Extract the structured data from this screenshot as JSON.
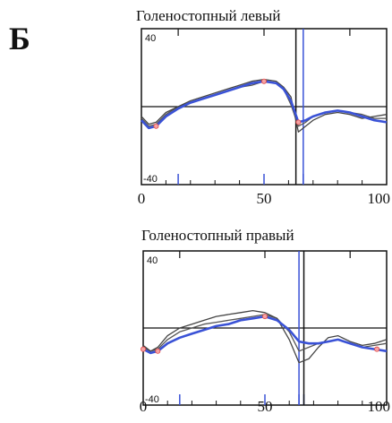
{
  "panel_label": "Б",
  "chart_data": [
    {
      "type": "line",
      "title": "Голеностопный левый",
      "xlim": [
        0,
        100
      ],
      "ylim": [
        -40,
        40
      ],
      "x_ticks": [
        "0",
        "50",
        "100"
      ],
      "y_ticks": [
        "40",
        "-40"
      ],
      "vertical_markers": [
        {
          "x": 63,
          "color": "#111111"
        },
        {
          "x": 66,
          "color": "#3a52d6"
        }
      ],
      "bottom_markers": [
        15,
        50,
        66
      ],
      "series": [
        {
          "color": "#3a52d6",
          "x": [
            0,
            3,
            6,
            10,
            15,
            20,
            25,
            30,
            35,
            40,
            45,
            50,
            55,
            58,
            61,
            64,
            67,
            70,
            75,
            80,
            85,
            90,
            95,
            100
          ],
          "y": [
            -7,
            -11,
            -10,
            -5,
            -1,
            2,
            4,
            6,
            8,
            10,
            12,
            13,
            12,
            9,
            3,
            -8,
            -7,
            -5,
            -3,
            -2,
            -3,
            -5,
            -7,
            -8
          ]
        },
        {
          "color": "#444444",
          "x": [
            0,
            3,
            6,
            10,
            15,
            20,
            25,
            30,
            35,
            40,
            45,
            50,
            55,
            58,
            61,
            64,
            67,
            70,
            75,
            80,
            85,
            90,
            95,
            100
          ],
          "y": [
            -5,
            -9,
            -8,
            -3,
            0,
            3,
            5,
            7,
            9,
            11,
            13,
            14,
            13,
            10,
            5,
            -13,
            -10,
            -7,
            -4,
            -3,
            -4,
            -6,
            -5,
            -4
          ]
        },
        {
          "color": "#555555",
          "x": [
            0,
            3,
            6,
            10,
            15,
            20,
            25,
            30,
            35,
            40,
            45,
            50,
            55,
            58,
            61,
            64,
            67,
            70,
            75,
            80,
            85,
            90,
            95,
            100
          ],
          "y": [
            -6,
            -10,
            -9,
            -4,
            0,
            2,
            4,
            6,
            8,
            10,
            11,
            13,
            12,
            9,
            1,
            -10,
            -8,
            -5,
            -3,
            -2,
            -3,
            -4,
            -6,
            -6
          ]
        }
      ],
      "points": [
        {
          "x": 6,
          "y": -10
        },
        {
          "x": 50,
          "y": 13
        },
        {
          "x": 64,
          "y": -8
        }
      ]
    },
    {
      "type": "line",
      "title": "Голеностопный правый",
      "xlim": [
        0,
        100
      ],
      "ylim": [
        -40,
        40
      ],
      "x_ticks": [
        "0",
        "50",
        "100"
      ],
      "y_ticks": [
        "40",
        "-40"
      ],
      "vertical_markers": [
        {
          "x": 64,
          "color": "#3a52d6"
        },
        {
          "x": 66,
          "color": "#111111"
        }
      ],
      "bottom_markers": [
        15,
        50,
        64,
        66
      ],
      "series": [
        {
          "color": "#3a52d6",
          "x": [
            0,
            3,
            6,
            10,
            15,
            20,
            25,
            30,
            35,
            40,
            45,
            50,
            55,
            60,
            64,
            68,
            72,
            76,
            80,
            85,
            90,
            95,
            100
          ],
          "y": [
            -11,
            -13,
            -12,
            -8,
            -5,
            -3,
            -1,
            1,
            2,
            4,
            5,
            6,
            4,
            -1,
            -7,
            -8,
            -8,
            -7,
            -6,
            -8,
            -10,
            -11,
            -12
          ]
        },
        {
          "color": "#444444",
          "x": [
            0,
            3,
            6,
            10,
            15,
            20,
            25,
            30,
            35,
            40,
            45,
            50,
            55,
            60,
            64,
            68,
            72,
            76,
            80,
            85,
            90,
            95,
            100
          ],
          "y": [
            -9,
            -12,
            -10,
            -4,
            0,
            2,
            4,
            6,
            7,
            8,
            9,
            8,
            5,
            -6,
            -18,
            -16,
            -10,
            -5,
            -4,
            -7,
            -9,
            -8,
            -6
          ]
        },
        {
          "color": "#555555",
          "x": [
            0,
            3,
            6,
            10,
            15,
            20,
            25,
            30,
            35,
            40,
            45,
            50,
            55,
            60,
            64,
            68,
            72,
            76,
            80,
            85,
            90,
            95,
            100
          ],
          "y": [
            -10,
            -12,
            -11,
            -6,
            -2,
            0,
            2,
            3,
            4,
            5,
            6,
            7,
            5,
            -2,
            -12,
            -10,
            -8,
            -7,
            -6,
            -8,
            -10,
            -9,
            -8
          ]
        }
      ],
      "points": [
        {
          "x": 0,
          "y": -11
        },
        {
          "x": 6,
          "y": -12
        },
        {
          "x": 50,
          "y": 6
        },
        {
          "x": 96,
          "y": -11
        }
      ]
    }
  ]
}
